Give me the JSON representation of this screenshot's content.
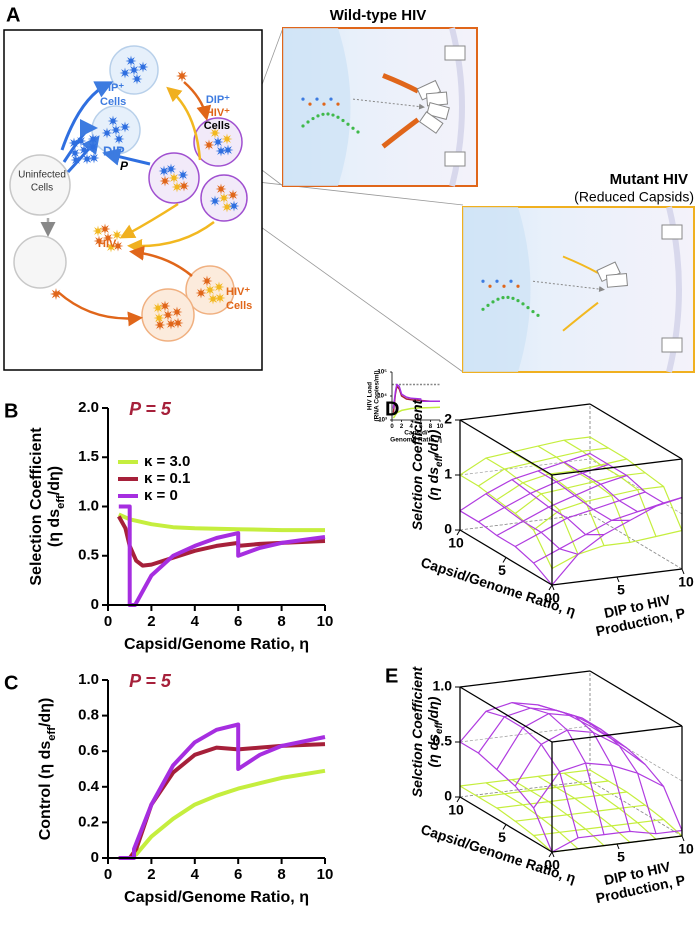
{
  "panel_a": {
    "label": "A",
    "wild_type_title": "Wild-type HIV",
    "mutant_title": "Mutant HIV",
    "mutant_subtitle": "(Reduced Capsids)",
    "cell_labels": {
      "dip_cells": [
        "DIP⁺",
        "Cells"
      ],
      "dual_cells": [
        "DIP⁺",
        "HIV⁺",
        "Cells"
      ],
      "uninfected": [
        "Uninfected",
        "Cells"
      ],
      "dip": "DIP",
      "p": "P",
      "hiv": "HIV",
      "hiv_cells": [
        "HIV⁺",
        "Cells"
      ]
    }
  },
  "chart_data": [
    {
      "type": "line",
      "panel": "B",
      "title": "P = 5",
      "x_label": [
        [
          "Capsid/Genome Ratio, η"
        ]
      ],
      "y_label": [
        [
          "Selection Coefficient"
        ],
        [
          "(η ds",
          "eff",
          "/dη)"
        ]
      ],
      "xlim": [
        0,
        10
      ],
      "xticks": [
        0,
        2,
        4,
        6,
        8,
        10
      ],
      "ylim": [
        0,
        2
      ],
      "yticks": [
        0,
        0.5,
        {
          "value": 1,
          "label": "1.0"
        },
        1.5,
        {
          "value": 2,
          "label": "2.0"
        }
      ],
      "legend": "upper left",
      "series": [
        {
          "name": "κ = 3.0",
          "color": "#c5ee3e",
          "x": [
            0.5,
            1,
            2,
            3,
            4,
            6,
            8,
            10
          ],
          "values": [
            0.92,
            0.87,
            0.82,
            0.79,
            0.78,
            0.77,
            0.76,
            0.76
          ]
        },
        {
          "name": "κ = 0.1",
          "color": "#a6203a",
          "x": [
            0.5,
            0.8,
            1,
            1.3,
            1.6,
            2,
            3,
            4,
            5,
            6,
            6,
            7,
            8,
            10
          ],
          "values": [
            0.9,
            0.78,
            0.6,
            0.45,
            0.4,
            0.41,
            0.48,
            0.55,
            0.6,
            0.63,
            0.6,
            0.62,
            0.63,
            0.65
          ]
        },
        {
          "name": "κ = 0",
          "color": "#a62ee0",
          "x": [
            0.5,
            1,
            1,
            1.25,
            2,
            3,
            4,
            5,
            6,
            6,
            7,
            8,
            10
          ],
          "values": [
            1.0,
            1.0,
            0,
            0,
            0.3,
            0.5,
            0.6,
            0.68,
            0.73,
            0.5,
            0.58,
            0.63,
            0.69
          ]
        }
      ]
    },
    {
      "type": "line",
      "log_y": true,
      "x_label": [
        [
          "Capsid/"
        ],
        [
          "Genome Ratio, η"
        ]
      ],
      "y_label": [
        [
          "HIV Load"
        ],
        [
          "(RNA Copies/ml)"
        ]
      ],
      "xlim": [
        0,
        10
      ],
      "xticks": [
        0,
        2,
        4,
        6,
        8,
        10
      ],
      "ylim": [
        1000,
        100000
      ],
      "yticks": [
        {
          "value": 1000,
          "label": "10³"
        },
        {
          "value": 10000,
          "label": "10⁴"
        },
        {
          "value": 100000,
          "label": "10⁵"
        }
      ],
      "series": [
        {
          "color": "#888888",
          "dashed": true,
          "x": [
            0,
            10
          ],
          "values": [
            30000,
            30000
          ]
        },
        {
          "color": "#c5ee3e",
          "x": [
            0.3,
            0.6,
            1,
            2,
            4,
            6,
            8,
            10
          ],
          "values": [
            1200,
            1500,
            2000,
            2500,
            3000,
            3200,
            3300,
            3400
          ]
        },
        {
          "color": "#a6203a",
          "x": [
            0.3,
            0.7,
            1,
            1.5,
            2,
            3,
            4,
            6,
            8,
            10
          ],
          "values": [
            2000,
            12000,
            25000,
            20000,
            10000,
            7500,
            7000,
            6500,
            6000,
            6000
          ]
        },
        {
          "color": "#a62ee0",
          "x": [
            0.3,
            0.7,
            1,
            1.5,
            2,
            3,
            4,
            6,
            6,
            8,
            10
          ],
          "values": [
            3000,
            15000,
            30000,
            25000,
            12000,
            9000,
            8000,
            7500,
            6000,
            6000,
            6000
          ]
        }
      ]
    },
    {
      "type": "line",
      "panel": "C",
      "title": "P = 5",
      "x_label": [
        [
          "Capsid/Genome Ratio, η"
        ]
      ],
      "y_label": [
        [
          "Control (η ds",
          "eff",
          "/dη)"
        ]
      ],
      "xlim": [
        0,
        10
      ],
      "xticks": [
        0,
        2,
        4,
        6,
        8,
        10
      ],
      "ylim": [
        0,
        1
      ],
      "yticks": [
        0,
        0.2,
        0.4,
        0.6,
        0.8,
        {
          "value": 1,
          "label": "1.0"
        }
      ],
      "series": [
        {
          "color": "#c5ee3e",
          "x": [
            0.5,
            1,
            1.3,
            2,
            3,
            4,
            5,
            6,
            7,
            8,
            10
          ],
          "values": [
            0,
            0,
            0.02,
            0.12,
            0.22,
            0.3,
            0.35,
            0.39,
            0.42,
            0.45,
            0.49
          ]
        },
        {
          "color": "#a6203a",
          "x": [
            0.5,
            1,
            1.3,
            2,
            3,
            4,
            5,
            6,
            7,
            8,
            10
          ],
          "values": [
            0,
            0,
            0.05,
            0.3,
            0.48,
            0.58,
            0.62,
            0.61,
            0.62,
            0.63,
            0.64
          ]
        },
        {
          "color": "#a62ee0",
          "x": [
            0.5,
            1.2,
            1.2,
            2,
            3,
            4,
            5,
            6,
            6,
            7,
            8,
            10
          ],
          "values": [
            0,
            0,
            0.05,
            0.3,
            0.52,
            0.65,
            0.72,
            0.75,
            0.5,
            0.58,
            0.63,
            0.68
          ]
        }
      ]
    },
    {
      "type": "surface",
      "panel": "D",
      "z_label": [
        [
          "Selction Coefficient"
        ],
        [
          "(η ds",
          "eff",
          "/dη)"
        ]
      ],
      "x_label": [
        [
          "Capsid/Genome Ratio, η"
        ]
      ],
      "y_label": [
        [
          "DIP to HIV"
        ],
        [
          "Production, P"
        ]
      ],
      "x": [
        0,
        2,
        4,
        6,
        8,
        10
      ],
      "y": [
        0,
        2,
        4,
        6,
        8,
        10
      ],
      "xlim": [
        0,
        10
      ],
      "ylim": [
        0,
        10
      ],
      "zlim": [
        0,
        2
      ],
      "xticks": [
        0,
        5,
        10
      ],
      "yticks": [
        0,
        5,
        10
      ],
      "zticks": [
        0,
        1,
        2
      ],
      "series": [
        {
          "color": "#c5ee3e",
          "values": [
            [
              0.3,
              0.8,
              0.9,
              0.95,
              1.0,
              1.0
            ],
            [
              0.5,
              1.1,
              1.2,
              1.2,
              1.25,
              1.25
            ],
            [
              0.6,
              1.2,
              1.25,
              1.3,
              1.3,
              1.3
            ],
            [
              0.6,
              1.25,
              1.3,
              1.3,
              1.35,
              1.35
            ],
            [
              0.65,
              1.3,
              1.35,
              1.35,
              1.4,
              1.4
            ],
            [
              0.7,
              1.3,
              1.35,
              1.4,
              1.4,
              1.4
            ]
          ]
        },
        {
          "color": "#b03ce0",
          "values": [
            [
              0,
              0.2,
              0.3,
              0.3,
              0.35,
              0.35
            ],
            [
              0.5,
              0.4,
              0.5,
              0.5,
              0.55,
              0.6
            ],
            [
              0.8,
              0.6,
              0.7,
              0.7,
              0.75,
              0.8
            ],
            [
              1.0,
              0.8,
              0.8,
              0.85,
              0.9,
              0.9
            ],
            [
              1.2,
              0.9,
              0.9,
              1.0,
              1.0,
              1.0
            ],
            [
              1.3,
              1.0,
              1.0,
              1.1,
              1.1,
              1.1
            ]
          ]
        }
      ]
    },
    {
      "type": "surface",
      "panel": "E",
      "z_label": [
        [
          "Selction Coefficient"
        ],
        [
          "(η ds",
          "eff",
          "/dη)"
        ]
      ],
      "x_label": [
        [
          "Capsid/Genome Ratio, η"
        ]
      ],
      "y_label": [
        [
          "DIP to HIV"
        ],
        [
          "Production, P"
        ]
      ],
      "x": [
        0,
        2,
        4,
        6,
        8,
        10
      ],
      "y": [
        0,
        2,
        4,
        6,
        8,
        10
      ],
      "xlim": [
        0,
        10
      ],
      "ylim": [
        0,
        10
      ],
      "zlim": [
        0,
        1
      ],
      "xticks": [
        0,
        5,
        10
      ],
      "yticks": [
        0,
        5,
        10
      ],
      "zticks": [
        0,
        0.5,
        {
          "value": 1,
          "label": "1.0"
        }
      ],
      "series": [
        {
          "color": "#c5ee3e",
          "values": [
            [
              0,
              0.05,
              0.08,
              0.1,
              0.1,
              0.1
            ],
            [
              0,
              0.05,
              0.08,
              0.1,
              0.1,
              0.1
            ],
            [
              0,
              0.05,
              0.08,
              0.1,
              0.1,
              0.1
            ],
            [
              0,
              0.05,
              0.08,
              0.1,
              0.1,
              0.1
            ],
            [
              0,
              0.05,
              0.08,
              0.1,
              0.1,
              0.1
            ],
            [
              0,
              0.05,
              0.08,
              0.1,
              0.1,
              0.1
            ]
          ]
        },
        {
          "color": "#b03ce0",
          "values": [
            [
              0,
              0.3,
              0.4,
              0.45,
              0.5,
              0.5
            ],
            [
              0.1,
              0.6,
              0.75,
              0.8,
              0.8,
              0.75
            ],
            [
              0.1,
              0.65,
              0.85,
              0.9,
              0.85,
              0.8
            ],
            [
              0.1,
              0.6,
              0.8,
              0.85,
              0.8,
              0.75
            ],
            [
              0.05,
              0.5,
              0.65,
              0.7,
              0.7,
              0.65
            ],
            [
              0.05,
              0.35,
              0.45,
              0.5,
              0.5,
              0.5
            ]
          ]
        }
      ]
    }
  ]
}
